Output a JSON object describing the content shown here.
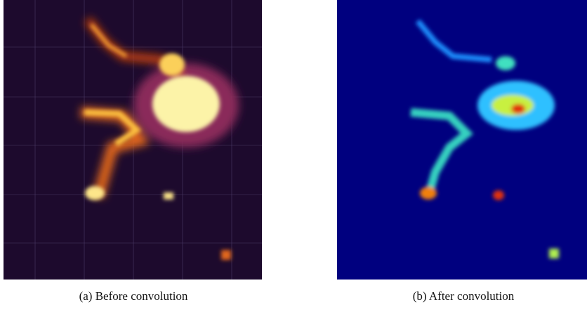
{
  "figure": {
    "subfigures": [
      {
        "caption": "(a) Before convolution"
      },
      {
        "caption": "(b) After convolution"
      }
    ]
  }
}
